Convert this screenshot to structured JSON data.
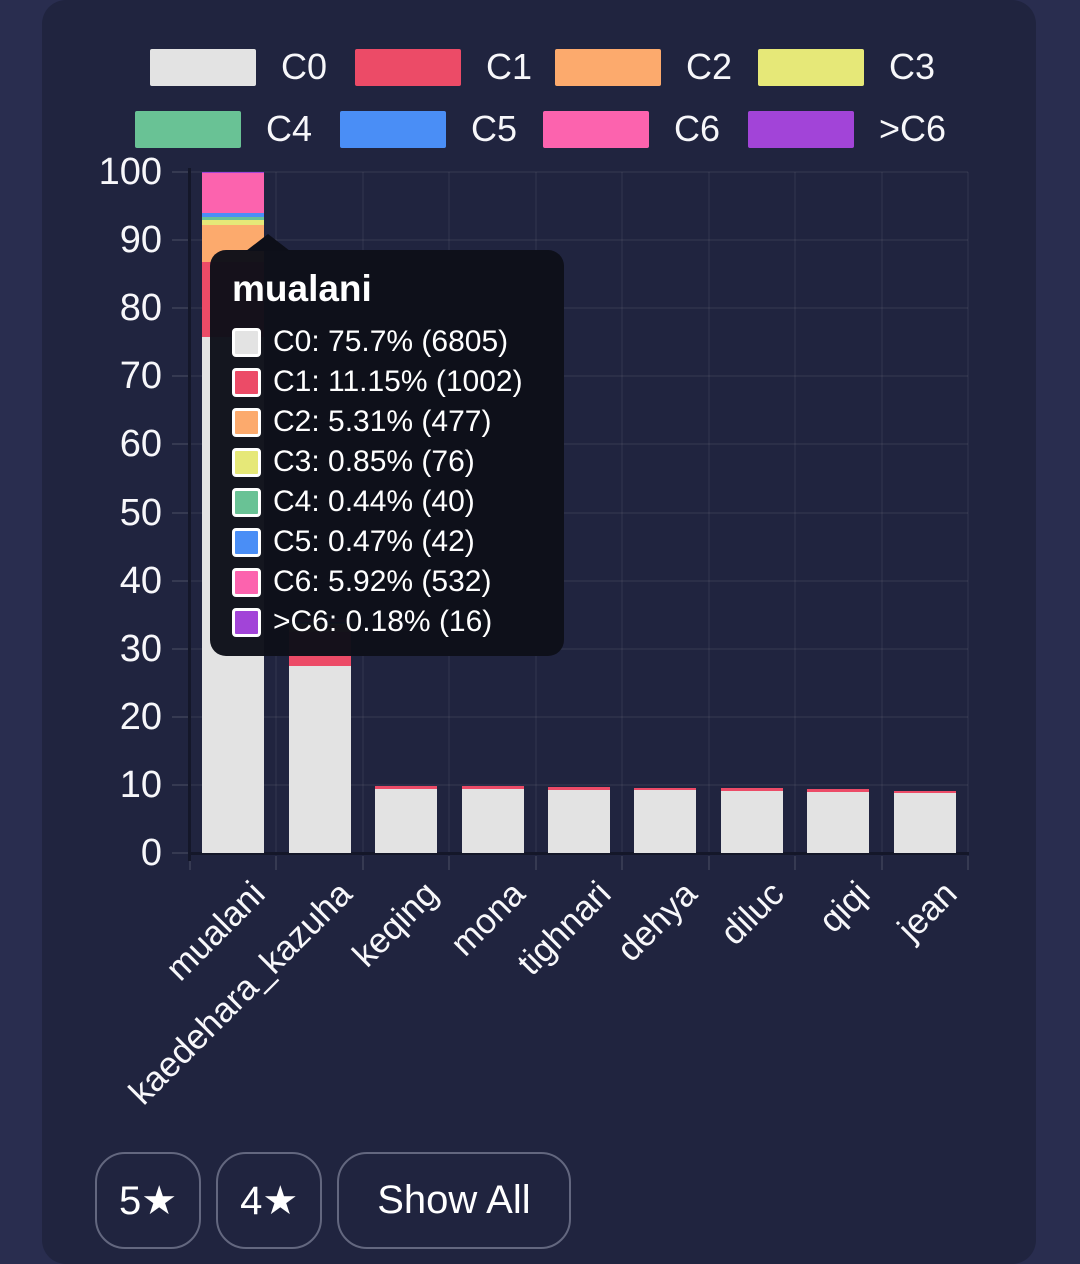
{
  "chart_data": {
    "type": "bar",
    "stacked": true,
    "title": "",
    "xlabel": "",
    "ylabel": "",
    "ylim": [
      0,
      100
    ],
    "yticks": [
      0,
      10,
      20,
      30,
      40,
      50,
      60,
      70,
      80,
      90,
      100
    ],
    "grid": true,
    "legend_position": "top",
    "legend_rows": [
      [
        "C0",
        "C1",
        "C2",
        "C3"
      ],
      [
        "C4",
        "C5",
        "C6",
        ">C6"
      ]
    ],
    "categories": [
      "mualani",
      "kaedehara_kazuha",
      "keqing",
      "mona",
      "tighnari",
      "dehya",
      "diluc",
      "qiqi",
      "jean"
    ],
    "series": [
      {
        "name": "C0",
        "color": "#e3e3e3",
        "values": [
          75.7,
          27.5,
          9.4,
          9.35,
          9.3,
          9.2,
          9.1,
          8.95,
          8.75
        ]
      },
      {
        "name": "C1",
        "color": "#ec4b67",
        "values": [
          11.15,
          5.0,
          0.45,
          0.45,
          0.45,
          0.4,
          0.4,
          0.4,
          0.4
        ]
      },
      {
        "name": "C2",
        "color": "#fcaa6d",
        "values": [
          5.31,
          1.0,
          0,
          0,
          0,
          0,
          0,
          0,
          0
        ]
      },
      {
        "name": "C3",
        "color": "#e6e878",
        "values": [
          0.85,
          0.15,
          0,
          0,
          0,
          0,
          0,
          0,
          0
        ]
      },
      {
        "name": "C4",
        "color": "#69c295",
        "values": [
          0.44,
          0.1,
          0,
          0,
          0,
          0,
          0,
          0,
          0
        ]
      },
      {
        "name": "C5",
        "color": "#4a8ef6",
        "values": [
          0.47,
          0.1,
          0,
          0,
          0,
          0,
          0,
          0,
          0
        ]
      },
      {
        "name": "C6",
        "color": "#fc63ae",
        "values": [
          5.92,
          0.4,
          0,
          0,
          0,
          0,
          0,
          0,
          0
        ]
      },
      {
        "name": ">C6",
        "color": "#a244d8",
        "values": [
          0.18,
          0.05,
          0,
          0,
          0,
          0,
          0,
          0,
          0
        ]
      }
    ]
  },
  "tooltip": {
    "title": "mualani",
    "rows": [
      {
        "label": "C0",
        "pct": "75.7",
        "count": "6805"
      },
      {
        "label": "C1",
        "pct": "11.15",
        "count": "1002"
      },
      {
        "label": "C2",
        "pct": "5.31",
        "count": "477"
      },
      {
        "label": "C3",
        "pct": "0.85",
        "count": "76"
      },
      {
        "label": "C4",
        "pct": "0.44",
        "count": "40"
      },
      {
        "label": "C5",
        "pct": "0.47",
        "count": "42"
      },
      {
        "label": "C6",
        "pct": "5.92",
        "count": "532"
      },
      {
        "label": ">C6",
        "pct": "0.18",
        "count": "16"
      }
    ]
  },
  "filters": [
    {
      "label": "5★"
    },
    {
      "label": "4★"
    },
    {
      "label": "Show All"
    }
  ],
  "colors": {
    "page_bg": "#292d4f",
    "card_bg": "#20243f",
    "tooltip_bg": "#0d0f19",
    "text": "#f7f7fa",
    "button_border": "#63677f",
    "axis_line": "#141729"
  }
}
